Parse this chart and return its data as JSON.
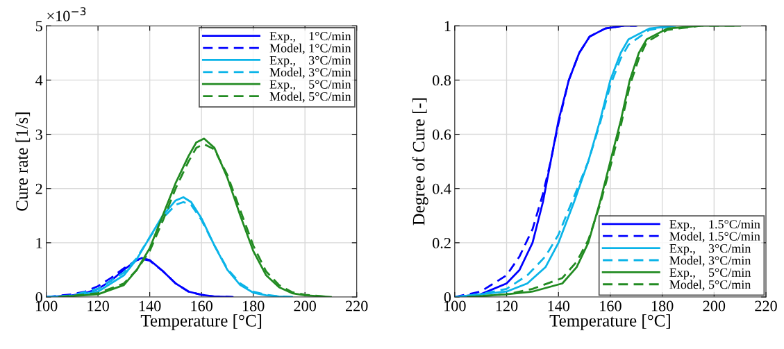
{
  "chart_data": [
    {
      "type": "line",
      "ylabel": "Cure rate [1/s]",
      "xlabel": "Temperature [°C]",
      "annotations": [
        "×10$^{−3}$"
      ],
      "xlim": [
        100,
        220
      ],
      "xticks": [
        100,
        120,
        140,
        160,
        180,
        200,
        220
      ],
      "ylim": [
        0,
        5
      ],
      "yticks": [
        0,
        1,
        2,
        3,
        4,
        5
      ],
      "grid": true,
      "legend": "top right",
      "series": [
        {
          "name": "Exp.,    1°C/min",
          "color": "#0000ff",
          "line_style": "solid",
          "x": [
            100,
            110,
            115,
            120,
            125,
            130,
            135,
            137,
            140,
            145,
            150,
            155,
            160,
            165,
            172
          ],
          "values": [
            0,
            0.03,
            0.07,
            0.15,
            0.3,
            0.5,
            0.68,
            0.72,
            0.68,
            0.48,
            0.25,
            0.1,
            0.04,
            0.01,
            0
          ]
        },
        {
          "name": "Model, 1°C/min",
          "color": "#0000ff",
          "line_style": "dashed",
          "x": [
            100,
            110,
            115,
            120,
            125,
            130,
            135,
            137,
            140,
            145,
            150,
            155,
            160,
            165,
            172
          ],
          "values": [
            0,
            0.05,
            0.1,
            0.2,
            0.35,
            0.53,
            0.68,
            0.7,
            0.67,
            0.48,
            0.25,
            0.1,
            0.04,
            0.01,
            0
          ]
        },
        {
          "name": "Exp.,    3°C/min",
          "color": "#0bb4e8",
          "line_style": "solid",
          "x": [
            100,
            110,
            120,
            130,
            135,
            140,
            145,
            150,
            153,
            156,
            160,
            165,
            170,
            175,
            180,
            185,
            190,
            195
          ],
          "values": [
            0,
            0.02,
            0.1,
            0.4,
            0.7,
            1.1,
            1.5,
            1.78,
            1.84,
            1.75,
            1.45,
            0.95,
            0.5,
            0.22,
            0.08,
            0.03,
            0.01,
            0
          ]
        },
        {
          "name": "Model, 3°C/min",
          "color": "#0bb4e8",
          "line_style": "dashed",
          "x": [
            100,
            110,
            120,
            130,
            135,
            140,
            145,
            150,
            153,
            156,
            160,
            165,
            170,
            175,
            180,
            185,
            190,
            195
          ],
          "values": [
            0,
            0.03,
            0.15,
            0.45,
            0.72,
            1.1,
            1.45,
            1.7,
            1.75,
            1.7,
            1.42,
            0.95,
            0.52,
            0.25,
            0.1,
            0.04,
            0.01,
            0
          ]
        },
        {
          "name": "Exp.,    5°C/min",
          "color": "#228b22",
          "line_style": "solid",
          "x": [
            105,
            120,
            130,
            135,
            140,
            145,
            150,
            155,
            158,
            161,
            165,
            170,
            175,
            180,
            185,
            190,
            195,
            200,
            210
          ],
          "values": [
            0,
            0.05,
            0.22,
            0.5,
            0.9,
            1.5,
            2.1,
            2.6,
            2.85,
            2.92,
            2.75,
            2.2,
            1.5,
            0.85,
            0.4,
            0.18,
            0.07,
            0.03,
            0
          ]
        },
        {
          "name": "Model, 5°C/min",
          "color": "#228b22",
          "line_style": "dashed",
          "x": [
            105,
            120,
            130,
            135,
            140,
            145,
            150,
            155,
            158,
            161,
            165,
            170,
            175,
            180,
            185,
            190,
            195,
            200,
            210
          ],
          "values": [
            0,
            0.07,
            0.25,
            0.5,
            0.85,
            1.4,
            2.0,
            2.5,
            2.75,
            2.82,
            2.72,
            2.25,
            1.6,
            0.95,
            0.47,
            0.22,
            0.09,
            0.04,
            0
          ]
        }
      ]
    },
    {
      "type": "line",
      "ylabel": "Degree of Cure [-]",
      "xlabel": "Temperature [°C]",
      "xlim": [
        100,
        220
      ],
      "xticks": [
        100,
        120,
        140,
        160,
        180,
        200,
        220
      ],
      "ylim": [
        0,
        1
      ],
      "yticks": [
        0,
        0.2,
        0.4,
        0.6,
        0.8,
        1
      ],
      "grid": true,
      "legend": "bottom right",
      "series": [
        {
          "name": "Exp.,    1.5°C/min",
          "color": "#0000ff",
          "line_style": "solid",
          "x": [
            100,
            110,
            120,
            125,
            130,
            134,
            137,
            140,
            144,
            148,
            152,
            158,
            165,
            170
          ],
          "values": [
            0,
            0.01,
            0.05,
            0.1,
            0.2,
            0.35,
            0.5,
            0.65,
            0.8,
            0.9,
            0.96,
            0.99,
            1,
            1
          ]
        },
        {
          "name": "Model, 1.5°C/min",
          "color": "#0000ff",
          "line_style": "dashed",
          "x": [
            100,
            110,
            120,
            125,
            130,
            134,
            137,
            140,
            144,
            148,
            152,
            158,
            165,
            170
          ],
          "values": [
            0,
            0.02,
            0.08,
            0.15,
            0.25,
            0.38,
            0.5,
            0.64,
            0.8,
            0.9,
            0.96,
            0.99,
            1,
            1
          ]
        },
        {
          "name": "Exp.,    3°C/min",
          "color": "#0bb4e8",
          "line_style": "solid",
          "x": [
            100,
            110,
            120,
            128,
            135,
            140,
            146,
            151.5,
            156,
            160,
            164,
            167,
            175,
            185
          ],
          "values": [
            0,
            0.01,
            0.02,
            0.05,
            0.11,
            0.2,
            0.35,
            0.5,
            0.65,
            0.8,
            0.9,
            0.95,
            0.99,
            1
          ]
        },
        {
          "name": "Model, 3°C/min",
          "color": "#0bb4e8",
          "line_style": "dashed",
          "x": [
            100,
            110,
            120,
            128,
            135,
            140,
            146,
            151.5,
            156,
            160,
            164,
            167,
            175,
            185
          ],
          "values": [
            0,
            0.01,
            0.03,
            0.08,
            0.15,
            0.23,
            0.37,
            0.5,
            0.64,
            0.78,
            0.88,
            0.93,
            0.985,
            1
          ]
        },
        {
          "name": "Exp.,    5°C/min",
          "color": "#228b22",
          "line_style": "solid",
          "x": [
            105,
            120,
            130,
            141.5,
            147,
            151.5,
            156,
            160,
            164,
            167.5,
            171,
            174,
            182,
            195,
            210
          ],
          "values": [
            0,
            0.01,
            0.02,
            0.05,
            0.11,
            0.2,
            0.35,
            0.5,
            0.65,
            0.8,
            0.9,
            0.95,
            0.99,
            1,
            1
          ]
        },
        {
          "name": "Model, 5°C/min",
          "color": "#228b22",
          "line_style": "dashed",
          "x": [
            105,
            120,
            130,
            141.5,
            147,
            151.5,
            156,
            160,
            164,
            167.5,
            171,
            174,
            182,
            195,
            210
          ],
          "values": [
            0,
            0.01,
            0.03,
            0.07,
            0.13,
            0.21,
            0.34,
            0.48,
            0.63,
            0.78,
            0.88,
            0.94,
            0.985,
            1,
            1
          ]
        }
      ]
    }
  ]
}
